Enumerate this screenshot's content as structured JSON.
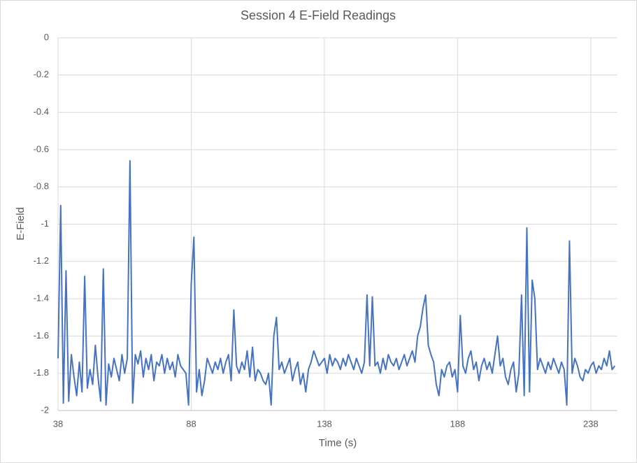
{
  "chart_data": {
    "type": "line",
    "title": "Session 4 E-Field Readings",
    "x_label": "Time (s)",
    "y_label": "E-Field",
    "xlim": [
      38,
      248
    ],
    "xticks": [
      38,
      88,
      138,
      188,
      238
    ],
    "ylim": [
      -2,
      0
    ],
    "yticks": [
      0,
      -0.2,
      -0.4,
      -0.6,
      -0.8,
      -1,
      -1.2,
      -1.4,
      -1.6,
      -1.8,
      -2
    ],
    "grid": true,
    "x": [
      38,
      39,
      40,
      41,
      42,
      43,
      44,
      45,
      46,
      47,
      48,
      49,
      50,
      51,
      52,
      53,
      54,
      55,
      56,
      57,
      58,
      59,
      60,
      61,
      62,
      63,
      64,
      65,
      66,
      67,
      68,
      69,
      70,
      71,
      72,
      73,
      74,
      75,
      76,
      77,
      78,
      79,
      80,
      81,
      82,
      83,
      84,
      85,
      86,
      87,
      88,
      89,
      90,
      91,
      92,
      93,
      94,
      95,
      96,
      97,
      98,
      99,
      100,
      101,
      102,
      103,
      104,
      105,
      106,
      107,
      108,
      109,
      110,
      111,
      112,
      113,
      114,
      115,
      116,
      117,
      118,
      119,
      120,
      121,
      122,
      123,
      124,
      125,
      126,
      127,
      128,
      129,
      130,
      131,
      132,
      133,
      134,
      135,
      136,
      137,
      138,
      139,
      140,
      141,
      142,
      143,
      144,
      145,
      146,
      147,
      148,
      149,
      150,
      151,
      152,
      153,
      154,
      155,
      156,
      157,
      158,
      159,
      160,
      161,
      162,
      163,
      164,
      165,
      166,
      167,
      168,
      169,
      170,
      171,
      172,
      173,
      174,
      175,
      176,
      177,
      178,
      179,
      180,
      181,
      182,
      183,
      184,
      185,
      186,
      187,
      188,
      189,
      190,
      191,
      192,
      193,
      194,
      195,
      196,
      197,
      198,
      199,
      200,
      201,
      202,
      203,
      204,
      205,
      206,
      207,
      208,
      209,
      210,
      211,
      212,
      213,
      214,
      215,
      216,
      217,
      218,
      219,
      220,
      221,
      222,
      223,
      224,
      225,
      226,
      227,
      228,
      229,
      230,
      231,
      232,
      233,
      234,
      235,
      236,
      237,
      238,
      239,
      240,
      241,
      242,
      243,
      244,
      245,
      246,
      247
    ],
    "series": [
      {
        "name": "E-Field",
        "color": "#4472c4",
        "values": [
          -1.72,
          -0.9,
          -1.96,
          -1.25,
          -1.95,
          -1.7,
          -1.82,
          -1.92,
          -1.74,
          -1.9,
          -1.28,
          -1.88,
          -1.78,
          -1.86,
          -1.65,
          -1.82,
          -1.95,
          -1.24,
          -1.97,
          -1.75,
          -1.82,
          -1.72,
          -1.78,
          -1.84,
          -1.7,
          -1.8,
          -1.72,
          -0.66,
          -1.96,
          -1.7,
          -1.75,
          -1.68,
          -1.82,
          -1.72,
          -1.78,
          -1.7,
          -1.84,
          -1.74,
          -1.76,
          -1.7,
          -1.8,
          -1.72,
          -1.78,
          -1.74,
          -1.82,
          -1.7,
          -1.76,
          -1.78,
          -1.8,
          -1.97,
          -1.32,
          -1.07,
          -1.9,
          -1.78,
          -1.92,
          -1.84,
          -1.72,
          -1.76,
          -1.8,
          -1.74,
          -1.78,
          -1.72,
          -1.8,
          -1.74,
          -1.7,
          -1.84,
          -1.46,
          -1.76,
          -1.8,
          -1.74,
          -1.78,
          -1.68,
          -1.82,
          -1.66,
          -1.84,
          -1.78,
          -1.8,
          -1.84,
          -1.86,
          -1.8,
          -1.97,
          -1.6,
          -1.5,
          -1.78,
          -1.74,
          -1.8,
          -1.76,
          -1.72,
          -1.84,
          -1.78,
          -1.74,
          -1.86,
          -1.8,
          -1.9,
          -1.78,
          -1.74,
          -1.68,
          -1.72,
          -1.76,
          -1.74,
          -1.72,
          -1.8,
          -1.7,
          -1.76,
          -1.72,
          -1.74,
          -1.78,
          -1.72,
          -1.76,
          -1.7,
          -1.74,
          -1.78,
          -1.72,
          -1.76,
          -1.8,
          -1.74,
          -1.38,
          -1.76,
          -1.39,
          -1.76,
          -1.74,
          -1.8,
          -1.72,
          -1.78,
          -1.7,
          -1.74,
          -1.76,
          -1.72,
          -1.78,
          -1.74,
          -1.7,
          -1.76,
          -1.72,
          -1.68,
          -1.74,
          -1.6,
          -1.55,
          -1.45,
          -1.38,
          -1.65,
          -1.7,
          -1.74,
          -1.86,
          -1.92,
          -1.78,
          -1.82,
          -1.76,
          -1.74,
          -1.82,
          -1.78,
          -1.9,
          -1.49,
          -1.76,
          -1.8,
          -1.72,
          -1.68,
          -1.78,
          -1.74,
          -1.84,
          -1.76,
          -1.72,
          -1.78,
          -1.74,
          -1.8,
          -1.7,
          -1.6,
          -1.76,
          -1.72,
          -1.82,
          -1.86,
          -1.78,
          -1.74,
          -1.9,
          -1.8,
          -1.38,
          -1.92,
          -1.02,
          -1.9,
          -1.3,
          -1.4,
          -1.78,
          -1.72,
          -1.76,
          -1.8,
          -1.74,
          -1.78,
          -1.72,
          -1.76,
          -1.8,
          -1.74,
          -1.78,
          -1.97,
          -1.09,
          -1.8,
          -1.72,
          -1.76,
          -1.82,
          -1.84,
          -1.78,
          -1.8,
          -1.76,
          -1.74,
          -1.8,
          -1.76,
          -1.78,
          -1.72,
          -1.76,
          -1.68,
          -1.78,
          -1.76
        ]
      }
    ]
  }
}
